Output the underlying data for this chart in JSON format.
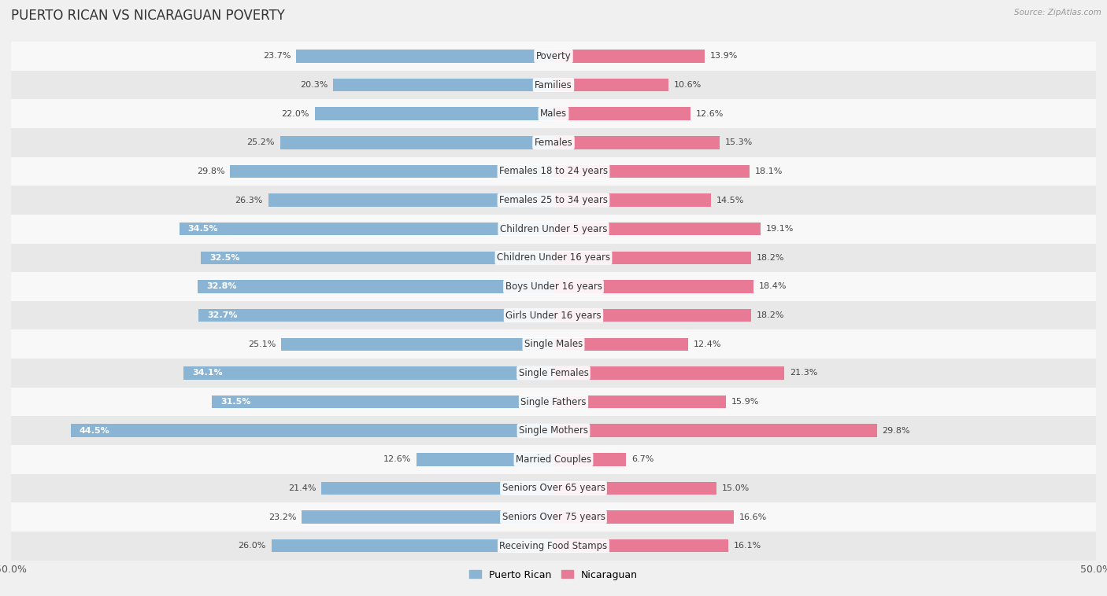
{
  "title": "PUERTO RICAN VS NICARAGUAN POVERTY",
  "source": "Source: ZipAtlas.com",
  "categories": [
    "Poverty",
    "Families",
    "Males",
    "Females",
    "Females 18 to 24 years",
    "Females 25 to 34 years",
    "Children Under 5 years",
    "Children Under 16 years",
    "Boys Under 16 years",
    "Girls Under 16 years",
    "Single Males",
    "Single Females",
    "Single Fathers",
    "Single Mothers",
    "Married Couples",
    "Seniors Over 65 years",
    "Seniors Over 75 years",
    "Receiving Food Stamps"
  ],
  "puerto_rican": [
    23.7,
    20.3,
    22.0,
    25.2,
    29.8,
    26.3,
    34.5,
    32.5,
    32.8,
    32.7,
    25.1,
    34.1,
    31.5,
    44.5,
    12.6,
    21.4,
    23.2,
    26.0
  ],
  "nicaraguan": [
    13.9,
    10.6,
    12.6,
    15.3,
    18.1,
    14.5,
    19.1,
    18.2,
    18.4,
    18.2,
    12.4,
    21.3,
    15.9,
    29.8,
    6.7,
    15.0,
    16.6,
    16.1
  ],
  "puerto_rican_color": "#8ab4d4",
  "nicaraguan_color": "#e87a96",
  "bg_color": "#f0f0f0",
  "row_color_even": "#f8f8f8",
  "row_color_odd": "#e8e8e8",
  "axis_max": 50.0,
  "title_fontsize": 12,
  "label_fontsize": 8.5,
  "value_fontsize": 8.0,
  "bar_height": 0.45,
  "inside_label_threshold": 30.0
}
